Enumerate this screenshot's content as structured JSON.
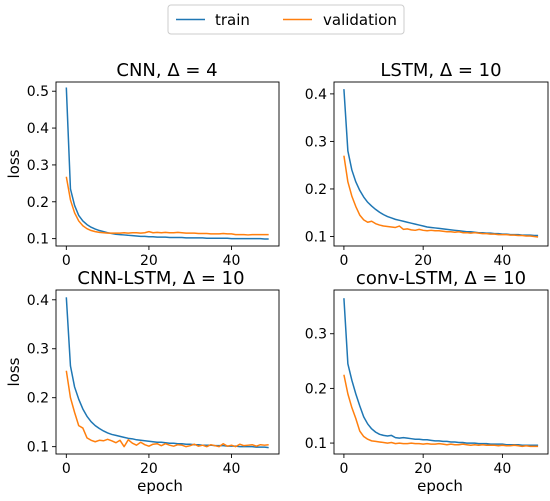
{
  "legend": {
    "entries": [
      {
        "label": "train",
        "color": "#1f77b4"
      },
      {
        "label": "validation",
        "color": "#ff7f0e"
      }
    ],
    "placement": "top-center"
  },
  "chart_data": [
    {
      "type": "line",
      "title": "CNN, Δ = 4",
      "xlabel": "",
      "ylabel": "loss",
      "xlim": [
        -2.5,
        51.5
      ],
      "ylim": [
        0.08,
        0.525
      ],
      "xticks": [
        0,
        20,
        40
      ],
      "yticks": [
        0.1,
        0.2,
        0.3,
        0.4,
        0.5
      ],
      "grid": false,
      "series": [
        {
          "name": "train",
          "color": "#1f77b4",
          "x": [
            0,
            1,
            2,
            3,
            4,
            5,
            6,
            7,
            8,
            9,
            10,
            11,
            12,
            13,
            14,
            15,
            16,
            17,
            18,
            19,
            20,
            21,
            22,
            23,
            24,
            25,
            26,
            27,
            28,
            29,
            30,
            31,
            32,
            33,
            34,
            35,
            36,
            37,
            38,
            39,
            40,
            41,
            42,
            43,
            44,
            45,
            46,
            47,
            48,
            49
          ],
          "values": [
            0.51,
            0.235,
            0.19,
            0.163,
            0.148,
            0.138,
            0.131,
            0.126,
            0.122,
            0.119,
            0.116,
            0.114,
            0.112,
            0.111,
            0.11,
            0.109,
            0.108,
            0.107,
            0.106,
            0.106,
            0.105,
            0.105,
            0.104,
            0.104,
            0.104,
            0.103,
            0.103,
            0.103,
            0.103,
            0.102,
            0.102,
            0.102,
            0.102,
            0.102,
            0.101,
            0.101,
            0.101,
            0.101,
            0.101,
            0.101,
            0.1,
            0.1,
            0.1,
            0.1,
            0.1,
            0.1,
            0.1,
            0.1,
            0.099,
            0.099
          ]
        },
        {
          "name": "validation",
          "color": "#ff7f0e",
          "x": [
            0,
            1,
            2,
            3,
            4,
            5,
            6,
            7,
            8,
            9,
            10,
            11,
            12,
            13,
            14,
            15,
            16,
            17,
            18,
            19,
            20,
            21,
            22,
            23,
            24,
            25,
            26,
            27,
            28,
            29,
            30,
            31,
            32,
            33,
            34,
            35,
            36,
            37,
            38,
            39,
            40,
            41,
            42,
            43,
            44,
            45,
            46,
            47,
            48,
            49
          ],
          "values": [
            0.268,
            0.205,
            0.17,
            0.148,
            0.135,
            0.127,
            0.122,
            0.119,
            0.117,
            0.116,
            0.115,
            0.115,
            0.115,
            0.115,
            0.116,
            0.115,
            0.116,
            0.116,
            0.115,
            0.116,
            0.119,
            0.116,
            0.117,
            0.116,
            0.117,
            0.116,
            0.116,
            0.117,
            0.116,
            0.115,
            0.115,
            0.115,
            0.114,
            0.114,
            0.114,
            0.113,
            0.113,
            0.113,
            0.114,
            0.113,
            0.113,
            0.111,
            0.111,
            0.111,
            0.11,
            0.111,
            0.111,
            0.111,
            0.111,
            0.111
          ]
        }
      ]
    },
    {
      "type": "line",
      "title": "LSTM, Δ = 10",
      "xlabel": "",
      "ylabel": "",
      "xlim": [
        -2.5,
        51.5
      ],
      "ylim": [
        0.08,
        0.425
      ],
      "xticks": [
        0,
        20,
        40
      ],
      "yticks": [
        0.1,
        0.2,
        0.3,
        0.4
      ],
      "grid": false,
      "series": [
        {
          "name": "train",
          "color": "#1f77b4",
          "x": [
            0,
            1,
            2,
            3,
            4,
            5,
            6,
            7,
            8,
            9,
            10,
            11,
            12,
            13,
            14,
            15,
            16,
            17,
            18,
            19,
            20,
            21,
            22,
            23,
            24,
            25,
            26,
            27,
            28,
            29,
            30,
            31,
            32,
            33,
            34,
            35,
            36,
            37,
            38,
            39,
            40,
            41,
            42,
            43,
            44,
            45,
            46,
            47,
            48,
            49
          ],
          "values": [
            0.41,
            0.28,
            0.24,
            0.215,
            0.197,
            0.183,
            0.172,
            0.164,
            0.157,
            0.151,
            0.146,
            0.142,
            0.139,
            0.136,
            0.134,
            0.132,
            0.13,
            0.128,
            0.126,
            0.124,
            0.122,
            0.12,
            0.119,
            0.118,
            0.117,
            0.116,
            0.115,
            0.114,
            0.113,
            0.112,
            0.111,
            0.11,
            0.11,
            0.109,
            0.108,
            0.108,
            0.107,
            0.107,
            0.106,
            0.106,
            0.105,
            0.105,
            0.104,
            0.104,
            0.104,
            0.103,
            0.103,
            0.103,
            0.102,
            0.102
          ]
        },
        {
          "name": "validation",
          "color": "#ff7f0e",
          "x": [
            0,
            1,
            2,
            3,
            4,
            5,
            6,
            7,
            8,
            9,
            10,
            11,
            12,
            13,
            14,
            15,
            16,
            17,
            18,
            19,
            20,
            21,
            22,
            23,
            24,
            25,
            26,
            27,
            28,
            29,
            30,
            31,
            32,
            33,
            34,
            35,
            36,
            37,
            38,
            39,
            40,
            41,
            42,
            43,
            44,
            45,
            46,
            47,
            48,
            49
          ],
          "values": [
            0.27,
            0.215,
            0.185,
            0.163,
            0.145,
            0.135,
            0.13,
            0.132,
            0.127,
            0.124,
            0.122,
            0.121,
            0.12,
            0.119,
            0.122,
            0.115,
            0.116,
            0.114,
            0.113,
            0.115,
            0.113,
            0.112,
            0.113,
            0.112,
            0.112,
            0.111,
            0.11,
            0.11,
            0.109,
            0.11,
            0.108,
            0.108,
            0.107,
            0.108,
            0.107,
            0.106,
            0.106,
            0.105,
            0.105,
            0.104,
            0.104,
            0.104,
            0.103,
            0.103,
            0.102,
            0.102,
            0.101,
            0.101,
            0.1,
            0.099
          ]
        }
      ]
    },
    {
      "type": "line",
      "title": "CNN-LSTM, Δ = 10",
      "xlabel": "epoch",
      "ylabel": "loss",
      "xlim": [
        -2.5,
        51.5
      ],
      "ylim": [
        0.085,
        0.42
      ],
      "xticks": [
        0,
        20,
        40
      ],
      "yticks": [
        0.1,
        0.2,
        0.3,
        0.4
      ],
      "grid": false,
      "series": [
        {
          "name": "train",
          "color": "#1f77b4",
          "x": [
            0,
            1,
            2,
            3,
            4,
            5,
            6,
            7,
            8,
            9,
            10,
            11,
            12,
            13,
            14,
            15,
            16,
            17,
            18,
            19,
            20,
            21,
            22,
            23,
            24,
            25,
            26,
            27,
            28,
            29,
            30,
            31,
            32,
            33,
            34,
            35,
            36,
            37,
            38,
            39,
            40,
            41,
            42,
            43,
            44,
            45,
            46,
            47,
            48,
            49
          ],
          "values": [
            0.405,
            0.265,
            0.222,
            0.197,
            0.177,
            0.162,
            0.151,
            0.143,
            0.137,
            0.132,
            0.128,
            0.125,
            0.123,
            0.121,
            0.119,
            0.117,
            0.116,
            0.114,
            0.113,
            0.112,
            0.111,
            0.11,
            0.109,
            0.109,
            0.108,
            0.107,
            0.107,
            0.106,
            0.106,
            0.105,
            0.105,
            0.104,
            0.104,
            0.103,
            0.103,
            0.103,
            0.102,
            0.102,
            0.102,
            0.101,
            0.101,
            0.101,
            0.1,
            0.1,
            0.1,
            0.1,
            0.099,
            0.099,
            0.099,
            0.098
          ]
        },
        {
          "name": "validation",
          "color": "#ff7f0e",
          "x": [
            0,
            1,
            2,
            3,
            4,
            5,
            6,
            7,
            8,
            9,
            10,
            11,
            12,
            13,
            14,
            15,
            16,
            17,
            18,
            19,
            20,
            21,
            22,
            23,
            24,
            25,
            26,
            27,
            28,
            29,
            30,
            31,
            32,
            33,
            34,
            35,
            36,
            37,
            38,
            39,
            40,
            41,
            42,
            43,
            44,
            45,
            46,
            47,
            48,
            49
          ],
          "values": [
            0.255,
            0.2,
            0.17,
            0.143,
            0.138,
            0.118,
            0.113,
            0.11,
            0.113,
            0.112,
            0.115,
            0.112,
            0.108,
            0.113,
            0.1,
            0.114,
            0.107,
            0.103,
            0.109,
            0.104,
            0.101,
            0.105,
            0.106,
            0.102,
            0.106,
            0.103,
            0.101,
            0.104,
            0.103,
            0.1,
            0.102,
            0.105,
            0.101,
            0.103,
            0.1,
            0.104,
            0.102,
            0.1,
            0.106,
            0.101,
            0.103,
            0.1,
            0.105,
            0.102,
            0.103,
            0.104,
            0.101,
            0.104,
            0.103,
            0.104
          ]
        }
      ]
    },
    {
      "type": "line",
      "title": "conv-LSTM, Δ = 10",
      "xlabel": "epoch",
      "ylabel": "",
      "xlim": [
        -2.5,
        51.5
      ],
      "ylim": [
        0.08,
        0.38
      ],
      "xticks": [
        0,
        20,
        40
      ],
      "yticks": [
        0.1,
        0.2,
        0.3
      ],
      "grid": false,
      "series": [
        {
          "name": "train",
          "color": "#1f77b4",
          "x": [
            0,
            1,
            2,
            3,
            4,
            5,
            6,
            7,
            8,
            9,
            10,
            11,
            12,
            13,
            14,
            15,
            16,
            17,
            18,
            19,
            20,
            21,
            22,
            23,
            24,
            25,
            26,
            27,
            28,
            29,
            30,
            31,
            32,
            33,
            34,
            35,
            36,
            37,
            38,
            39,
            40,
            41,
            42,
            43,
            44,
            45,
            46,
            47,
            48,
            49
          ],
          "values": [
            0.365,
            0.245,
            0.215,
            0.19,
            0.168,
            0.148,
            0.135,
            0.126,
            0.12,
            0.116,
            0.114,
            0.113,
            0.114,
            0.11,
            0.109,
            0.11,
            0.109,
            0.108,
            0.107,
            0.107,
            0.106,
            0.106,
            0.105,
            0.104,
            0.104,
            0.103,
            0.103,
            0.102,
            0.102,
            0.101,
            0.101,
            0.1,
            0.1,
            0.1,
            0.099,
            0.099,
            0.099,
            0.098,
            0.098,
            0.098,
            0.098,
            0.097,
            0.097,
            0.097,
            0.097,
            0.096,
            0.096,
            0.096,
            0.096,
            0.096
          ]
        },
        {
          "name": "validation",
          "color": "#ff7f0e",
          "x": [
            0,
            1,
            2,
            3,
            4,
            5,
            6,
            7,
            8,
            9,
            10,
            11,
            12,
            13,
            14,
            15,
            16,
            17,
            18,
            19,
            20,
            21,
            22,
            23,
            24,
            25,
            26,
            27,
            28,
            29,
            30,
            31,
            32,
            33,
            34,
            35,
            36,
            37,
            38,
            39,
            40,
            41,
            42,
            43,
            44,
            45,
            46,
            47,
            48,
            49
          ],
          "values": [
            0.225,
            0.19,
            0.165,
            0.145,
            0.122,
            0.112,
            0.107,
            0.104,
            0.103,
            0.102,
            0.101,
            0.1,
            0.101,
            0.099,
            0.1,
            0.099,
            0.099,
            0.1,
            0.099,
            0.099,
            0.098,
            0.099,
            0.098,
            0.098,
            0.099,
            0.098,
            0.097,
            0.098,
            0.097,
            0.097,
            0.098,
            0.097,
            0.096,
            0.097,
            0.096,
            0.097,
            0.096,
            0.096,
            0.096,
            0.095,
            0.096,
            0.095,
            0.095,
            0.096,
            0.095,
            0.094,
            0.095,
            0.094,
            0.094,
            0.094
          ]
        }
      ]
    }
  ]
}
